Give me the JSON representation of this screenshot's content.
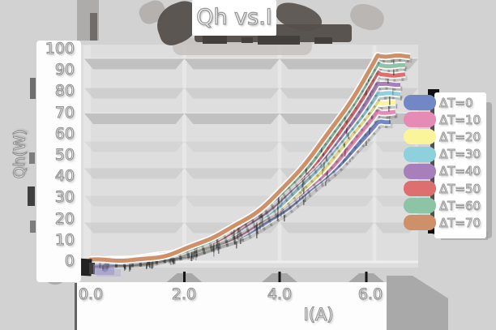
{
  "title": "Qh vs.I",
  "axes": {
    "x": {
      "label": "I(A)",
      "ticks": [
        "0.0",
        "2.0",
        "4.0",
        "6.0"
      ],
      "range": [
        0,
        6.9
      ]
    },
    "y": {
      "label": "Qh(W)",
      "ticks": [
        "100",
        "90",
        "80",
        "70",
        "60",
        "50",
        "40",
        "30",
        "20",
        "10",
        "0"
      ],
      "range": [
        0,
        105
      ]
    }
  },
  "colors": {
    "background": "#d2d2d2",
    "plot_background": "#dedede",
    "grid_band": "#bfbfbf",
    "text_fill": "#ffffff",
    "text_outline": "#8f8f8f",
    "shadow_dark": "#3a3a3a",
    "shadow_mid": "#a9a9a9"
  },
  "chart_data": {
    "type": "line",
    "title": "Qh vs.I",
    "xlabel": "I(A)",
    "ylabel": "Qh(W)",
    "xlim": [
      0,
      6.9
    ],
    "ylim": [
      0,
      105
    ],
    "grid": true,
    "legend_position": "right",
    "x": [
      0,
      1,
      2,
      3,
      4,
      5,
      6
    ],
    "series": [
      {
        "name": "ΔT=0",
        "color": "#7287c5",
        "values": [
          0,
          0.6,
          3.8,
          10.8,
          22.8,
          40.8,
          65.6
        ]
      },
      {
        "name": "ΔT=10",
        "color": "#e58bb5",
        "values": [
          0,
          0.7,
          4.0,
          11.6,
          24.4,
          43.5,
          70.0
        ]
      },
      {
        "name": "ΔT=20",
        "color": "#faf49b",
        "values": [
          0,
          0.7,
          4.3,
          12.3,
          25.9,
          46.3,
          74.4
        ]
      },
      {
        "name": "ΔT=30",
        "color": "#8fd0dd",
        "values": [
          0,
          0.7,
          4.5,
          13.0,
          27.4,
          49.0,
          78.8
        ]
      },
      {
        "name": "ΔT=40",
        "color": "#a77fba",
        "values": [
          0,
          0.8,
          4.8,
          13.7,
          29.0,
          51.8,
          83.2
        ]
      },
      {
        "name": "ΔT=50",
        "color": "#dd6f6f",
        "values": [
          0,
          0.8,
          5.0,
          14.5,
          30.5,
          54.5,
          87.6
        ]
      },
      {
        "name": "ΔT=60",
        "color": "#8cc4a5",
        "values": [
          0,
          0.9,
          5.3,
          15.2,
          32.0,
          57.2,
          92.0
        ]
      },
      {
        "name": "ΔT=70",
        "color": "#cd9068",
        "values": [
          0,
          0.9,
          5.5,
          15.9,
          33.6,
          60.0,
          96.5
        ]
      }
    ]
  }
}
